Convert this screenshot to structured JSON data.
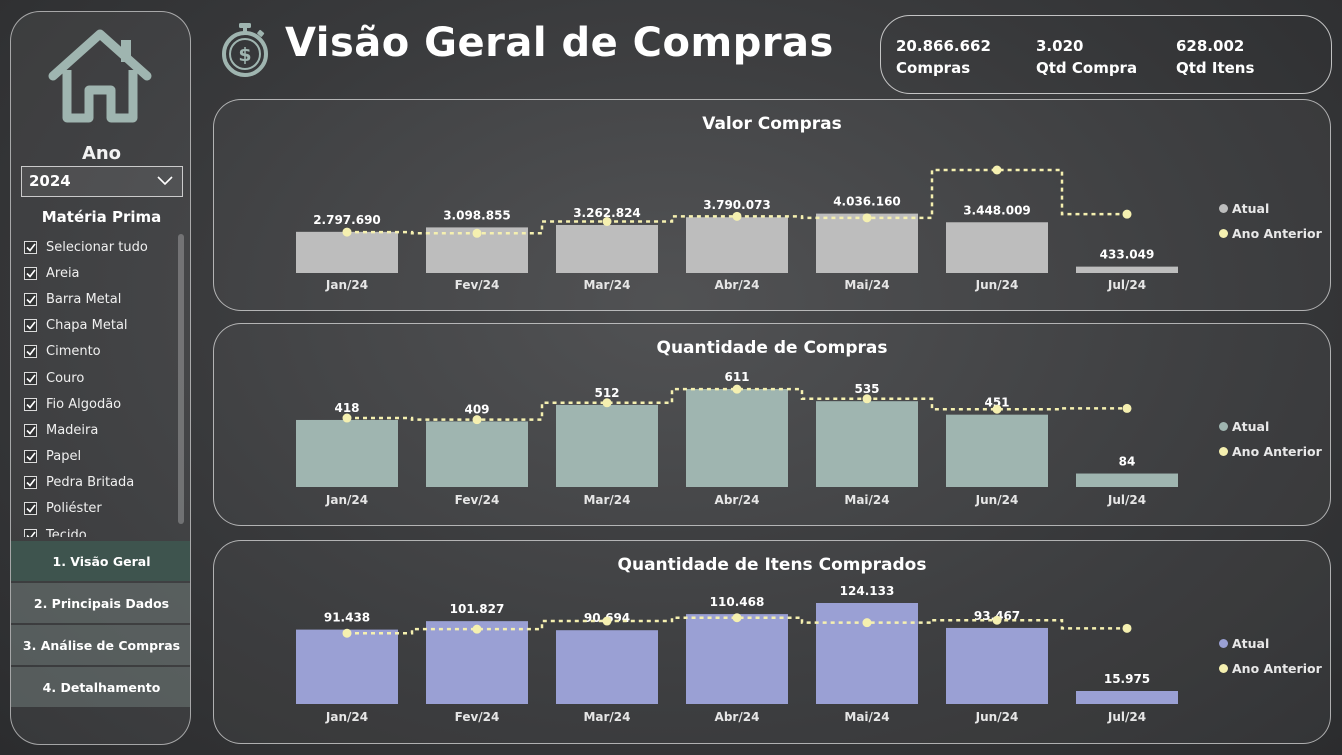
{
  "title": "Visão Geral de Compras",
  "colors": {
    "prev_line": "#f5f0b0",
    "bar1": "#bdbdbd",
    "bar2": "#9fb5b0",
    "bar3": "#9aa0d4"
  },
  "kpis": [
    {
      "value": "20.866.662",
      "label": "Compras"
    },
    {
      "value": "3.020",
      "label": "Qtd Compra"
    },
    {
      "value": "628.002",
      "label": "Qtd Itens"
    }
  ],
  "sidebar": {
    "ano_label": "Ano",
    "year": "2024",
    "materia_label": "Matéria Prima",
    "items": [
      "Selecionar tudo",
      "Areia",
      "Barra Metal",
      "Chapa Metal",
      "Cimento",
      "Couro",
      "Fio Algodão",
      "Madeira",
      "Papel",
      "Pedra Britada",
      "Poliéster",
      "Tecido"
    ],
    "nav": [
      "1. Visão Geral",
      "2. Principais Dados",
      "3. Análise de Compras",
      "4. Detalhamento"
    ]
  },
  "chart_data": [
    {
      "type": "bar",
      "title": "Valor Compras",
      "categories": [
        "Jan/24",
        "Fev/24",
        "Mar/24",
        "Abr/24",
        "Mai/24",
        "Jun/24",
        "Jul/24"
      ],
      "series": [
        {
          "name": "Atual",
          "values": [
            2797690,
            3098855,
            3262824,
            3790073,
            4036160,
            3448009,
            433049
          ]
        },
        {
          "name": "Ano Anterior",
          "values": [
            2780000,
            2700000,
            3500000,
            3850000,
            3750000,
            7000000,
            4000000
          ]
        }
      ],
      "labels": [
        "2.797.690",
        "3.098.855",
        "3.262.824",
        "3.790.073",
        "4.036.160",
        "3.448.009",
        "433.049"
      ],
      "legend": [
        "Atual",
        "Ano Anterior"
      ]
    },
    {
      "type": "bar",
      "title": "Quantidade de Compras",
      "categories": [
        "Jan/24",
        "Fev/24",
        "Mar/24",
        "Abr/24",
        "Mai/24",
        "Jun/24",
        "Jul/24"
      ],
      "series": [
        {
          "name": "Atual",
          "values": [
            418,
            409,
            512,
            611,
            535,
            451,
            84
          ]
        },
        {
          "name": "Ano Anterior",
          "values": [
            430,
            420,
            525,
            610,
            550,
            485,
            490
          ]
        }
      ],
      "labels": [
        "418",
        "409",
        "512",
        "611",
        "535",
        "451",
        "84"
      ],
      "legend": [
        "Atual",
        "Ano Anterior"
      ]
    },
    {
      "type": "bar",
      "title": "Quantidade de Itens Comprados",
      "categories": [
        "Jan/24",
        "Fev/24",
        "Mar/24",
        "Abr/24",
        "Mai/24",
        "Jun/24",
        "Jul/24"
      ],
      "series": [
        {
          "name": "Atual",
          "values": [
            91438,
            101827,
            90694,
            110468,
            124133,
            93467,
            15975
          ]
        },
        {
          "name": "Ano Anterior",
          "values": [
            87000,
            92000,
            102000,
            106000,
            100000,
            103000,
            93000
          ]
        }
      ],
      "labels": [
        "91.438",
        "101.827",
        "90.694",
        "110.468",
        "124.133",
        "93.467",
        "15.975"
      ],
      "legend": [
        "Atual",
        "Ano Anterior"
      ]
    }
  ]
}
